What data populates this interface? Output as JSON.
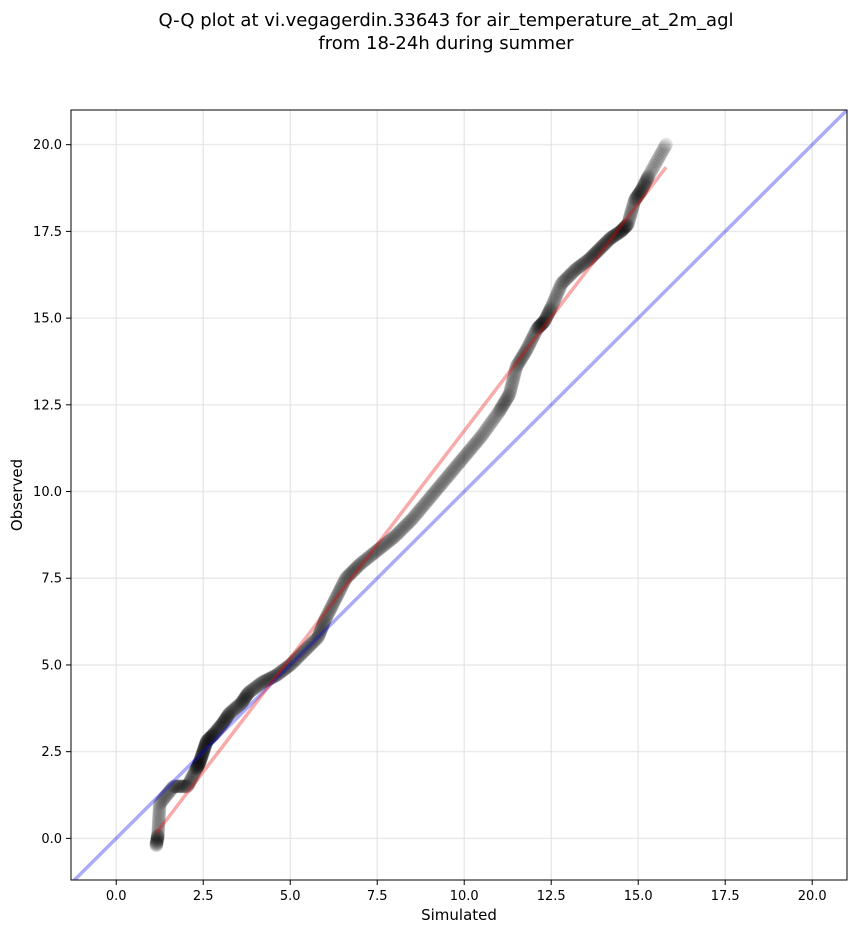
{
  "chart_data": {
    "type": "scatter",
    "title_lines": [
      "Q-Q plot at vi.vegagerdin.33643 for air_temperature_at_2m_agl",
      "from 18-24h during summer"
    ],
    "xlabel": "Simulated",
    "ylabel": "Observed",
    "xlim": [
      -1.3,
      21.0
    ],
    "ylim": [
      -1.2,
      21.0
    ],
    "xticks": [
      0.0,
      2.5,
      5.0,
      7.5,
      10.0,
      12.5,
      15.0,
      17.5,
      20.0
    ],
    "yticks": [
      0.0,
      2.5,
      5.0,
      7.5,
      10.0,
      12.5,
      15.0,
      17.5,
      20.0
    ],
    "xtick_labels": [
      "0.0",
      "2.5",
      "5.0",
      "7.5",
      "10.0",
      "12.5",
      "15.0",
      "17.5",
      "20.0"
    ],
    "ytick_labels": [
      "0.0",
      "2.5",
      "5.0",
      "7.5",
      "10.0",
      "12.5",
      "15.0",
      "17.5",
      "20.0"
    ],
    "grid": true,
    "reference_line": {
      "name": "1:1 line",
      "x": [
        -1.3,
        21.0
      ],
      "y": [
        -1.3,
        21.0
      ],
      "color": "#a9adf0"
    },
    "fit_line": {
      "name": "fit",
      "x": [
        1.15,
        15.8
      ],
      "y": [
        0.15,
        19.35
      ],
      "color": "#f4a6a6"
    },
    "quantiles": {
      "simulated": [
        1.15,
        1.2,
        1.25,
        1.65,
        2.05,
        2.3,
        2.4,
        2.5,
        2.6,
        2.8,
        3.05,
        3.25,
        3.6,
        3.8,
        4.2,
        4.6,
        5.0,
        5.4,
        5.8,
        6.0,
        6.3,
        6.6,
        7.0,
        7.5,
        8.0,
        8.5,
        9.0,
        9.5,
        10.0,
        10.5,
        11.0,
        11.3,
        11.5,
        11.8,
        12.1,
        12.3,
        12.5,
        12.8,
        13.2,
        13.6,
        13.9,
        14.2,
        14.5,
        14.7,
        14.9,
        15.1,
        15.3,
        15.8
      ],
      "observed": [
        -0.2,
        0.1,
        1.0,
        1.5,
        1.5,
        2.0,
        2.2,
        2.5,
        2.8,
        3.0,
        3.3,
        3.6,
        3.9,
        4.2,
        4.5,
        4.7,
        5.0,
        5.4,
        5.8,
        6.3,
        6.9,
        7.5,
        7.9,
        8.3,
        8.7,
        9.2,
        9.8,
        10.4,
        11.0,
        11.6,
        12.3,
        12.8,
        13.6,
        14.1,
        14.7,
        14.9,
        15.3,
        16.0,
        16.4,
        16.7,
        17.0,
        17.3,
        17.5,
        17.7,
        18.4,
        18.7,
        19.1,
        20.0
      ]
    }
  }
}
